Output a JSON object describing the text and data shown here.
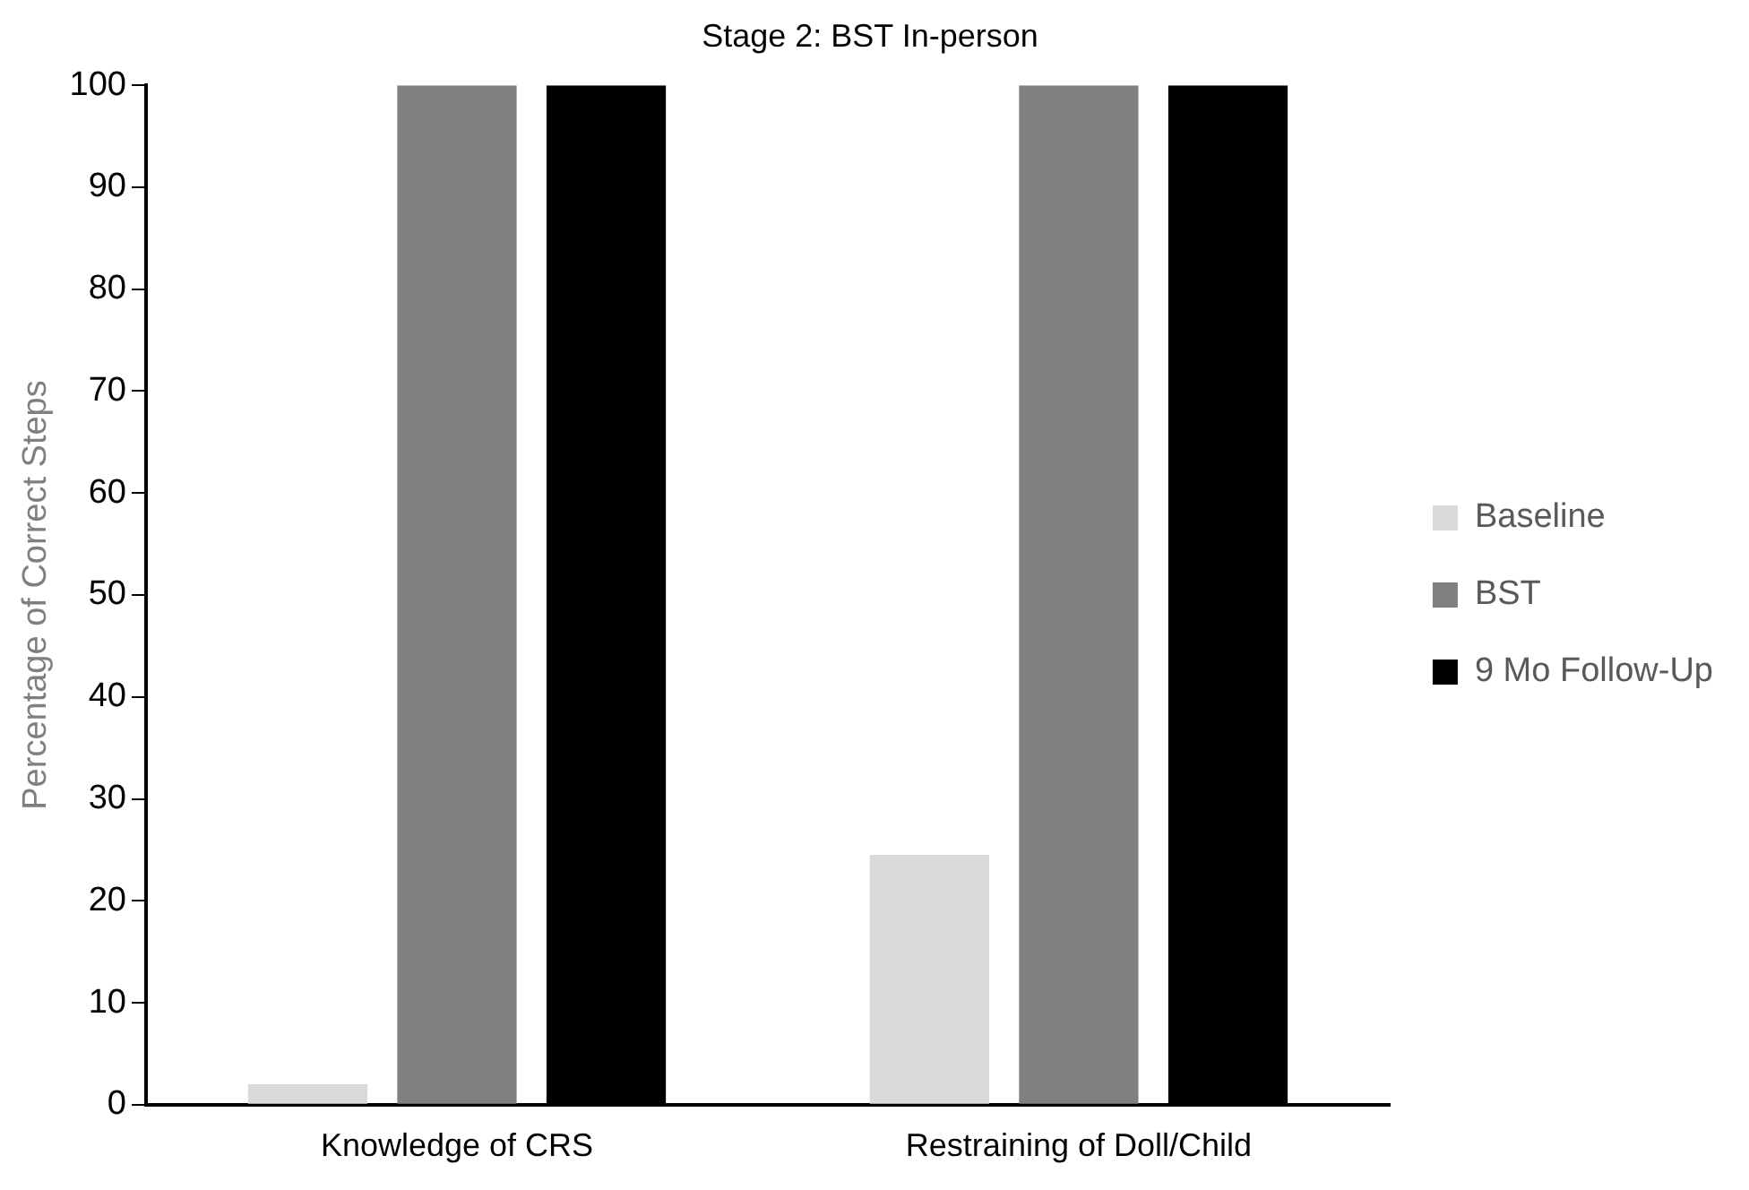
{
  "chart_data": {
    "type": "bar",
    "title": "Stage 2: BST In-person",
    "ylabel": "Percentage of Correct Steps",
    "categories": [
      "Knowledge of CRS",
      "Restraining of Doll/Child"
    ],
    "series": [
      {
        "name": "Baseline",
        "color": "#d9d9d9",
        "values": [
          2,
          24.5
        ]
      },
      {
        "name": "BST",
        "color": "#808080",
        "values": [
          100,
          100
        ]
      },
      {
        "name": "9 Mo Follow-Up",
        "color": "#000000",
        "values": [
          100,
          100
        ]
      }
    ],
    "ylim": [
      0,
      100
    ],
    "yticks": [
      0,
      10,
      20,
      30,
      40,
      50,
      60,
      70,
      80,
      90,
      100
    ],
    "grid": false,
    "legend": "right"
  }
}
